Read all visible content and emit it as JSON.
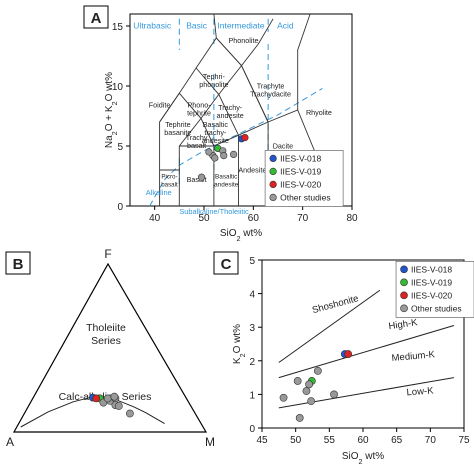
{
  "colors": {
    "series_018": "#2255cc",
    "series_019": "#33bb33",
    "series_020": "#dd2222",
    "other": "#999999",
    "field_lines": "#333333",
    "dashed_blue": "#3399dd"
  },
  "panels": {
    "A": "A",
    "B": "B",
    "C": "C"
  },
  "chart_data": [
    {
      "type": "scatter",
      "panel": "A",
      "xlabel": "SiO2 wt%",
      "ylabel": "Na2O + K2O wt%",
      "xlim": [
        35,
        80
      ],
      "ylim": [
        0,
        16
      ],
      "xticks": [
        "40",
        "50",
        "60",
        "70",
        "80"
      ],
      "yticks": [
        "0",
        "5",
        "10",
        "15"
      ],
      "region_labels": {
        "ultrabasic": "Ultrabasic",
        "basic": "Basic",
        "intermediate": "Intermediate",
        "acid": "Acid",
        "phonolite": "Phonolite",
        "tephriphonolite": "Tephri-\nphonolite",
        "foidite": "Foidite",
        "phonotephrite": "Phono-\ntephrite",
        "trachyandesite": "Trachy-\nandesite",
        "trachyte": "Trachyte\nTrachydacite",
        "rhyolite": "Rhyolite",
        "tephritebasanite": "Tephrite\nbasanite",
        "basaltictrachyandesite": "Basaltic\ntrachy-\nandesite",
        "trachybasalt": "Trachy\nbasalt",
        "dacite": "Dacite",
        "andesite": "Andesite",
        "picrobasalt": "Picro-\nbasalt",
        "basalt": "Basalt",
        "basalticandesite": "Basaltic\nandesite",
        "alkaline": "Alkaline",
        "subalkaline": "Subalkaline/Tholeiitic"
      },
      "series": [
        {
          "name": "IIES-V-018",
          "points": [
            [
              57.6,
              5.6
            ]
          ]
        },
        {
          "name": "IIES-V-019",
          "points": [
            [
              52.8,
              4.8
            ]
          ]
        },
        {
          "name": "IIES-V-020",
          "points": [
            [
              58.3,
              5.7
            ]
          ]
        },
        {
          "name": "Other studies",
          "points": [
            [
              49.5,
              2.4
            ],
            [
              51.8,
              4.2
            ],
            [
              53.8,
              4.6
            ],
            [
              52.2,
              4.0
            ],
            [
              51.0,
              4.5
            ],
            [
              56.0,
              4.3
            ],
            [
              54.0,
              4.2
            ]
          ]
        }
      ],
      "legend_position": "right"
    },
    {
      "type": "scatter",
      "panel": "B",
      "vertex_labels": {
        "top": "F",
        "left": "A",
        "right": "M"
      },
      "region_labels": {
        "tholeiite": "Tholeiite\nSeries",
        "calcalkaline": "Calc-alkaline Series"
      },
      "series": [
        {
          "name": "IIES-V-018",
          "points": [
            [
              0.31,
              0.205
            ]
          ]
        },
        {
          "name": "IIES-V-019",
          "points": [
            [
              0.35,
              0.2
            ]
          ]
        },
        {
          "name": "IIES-V-020",
          "points": [
            [
              0.33,
              0.2
            ]
          ]
        },
        {
          "name": "Other studies",
          "points": [
            [
              0.38,
              0.175
            ],
            [
              0.41,
              0.185
            ],
            [
              0.43,
              0.2
            ],
            [
              0.45,
              0.16
            ],
            [
              0.39,
              0.2
            ],
            [
              0.42,
              0.21
            ],
            [
              0.55,
              0.11
            ],
            [
              0.47,
              0.155
            ]
          ]
        }
      ]
    },
    {
      "type": "scatter",
      "panel": "C",
      "xlabel": "SiO2 wt%",
      "ylabel": "K2O wt%",
      "xlim": [
        45,
        75
      ],
      "ylim": [
        0,
        5
      ],
      "xticks": [
        "45",
        "50",
        "55",
        "60",
        "65",
        "70",
        "75"
      ],
      "yticks": [
        "0",
        "1",
        "2",
        "3",
        "4",
        "5"
      ],
      "region_labels": {
        "shoshonite": "Shoshonite",
        "highk": "High-K",
        "mediumk": "Medium-K",
        "lowk": "Low-K"
      },
      "series": [
        {
          "name": "IIES-V-018",
          "points": [
            [
              57.3,
              2.2
            ]
          ]
        },
        {
          "name": "IIES-V-019",
          "points": [
            [
              52.4,
              1.4
            ]
          ]
        },
        {
          "name": "IIES-V-020",
          "points": [
            [
              57.8,
              2.2
            ]
          ]
        },
        {
          "name": "Other studies",
          "points": [
            [
              48.2,
              0.9
            ],
            [
              50.6,
              0.3
            ],
            [
              50.3,
              1.4
            ],
            [
              51.6,
              1.1
            ],
            [
              52.0,
              1.3
            ],
            [
              53.3,
              1.7
            ],
            [
              55.7,
              1.0
            ],
            [
              52.3,
              0.8
            ]
          ]
        }
      ],
      "legend_position": "top-right"
    }
  ]
}
